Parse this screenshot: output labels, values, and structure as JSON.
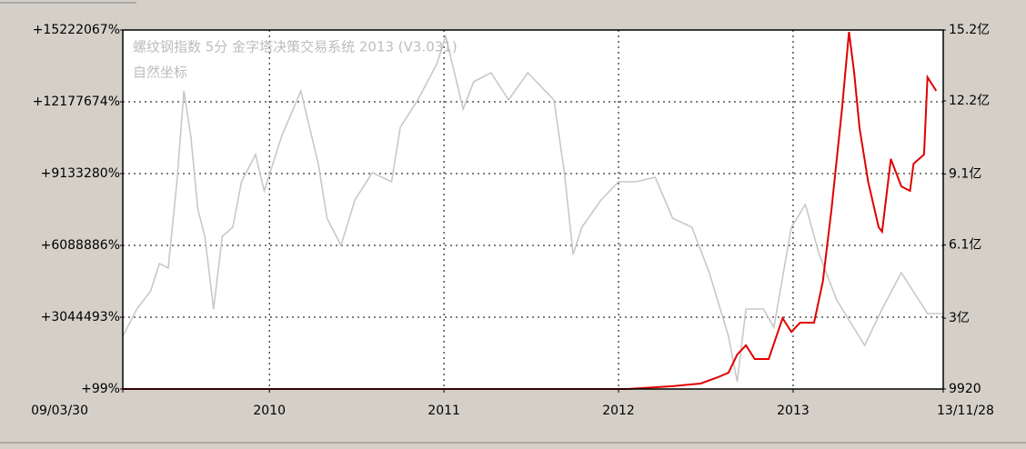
{
  "chart_data": {
    "type": "line",
    "title": "螺纹钢指数 5分 金字塔决策交易系统 2013 (V3.031)",
    "subtitle": "自然坐标",
    "xlim": [
      2009.16,
      2013.86
    ],
    "xticks": [
      {
        "value": 2009.16,
        "label": "09/03/30"
      },
      2010,
      2011,
      2012,
      2013,
      {
        "value": 2013.86,
        "label": "13/11/28"
      }
    ],
    "ylim": [
      99,
      15222067
    ],
    "yticks": [
      {
        "value": 99,
        "label": "+99%"
      },
      {
        "value": 3044493,
        "label": "+3044493%"
      },
      {
        "value": 6088886,
        "label": "+6088886%"
      },
      {
        "value": 9133280,
        "label": "+9133280%"
      },
      {
        "value": 12177674,
        "label": "+12177674%"
      },
      {
        "value": 15222067,
        "label": "+15222067%"
      }
    ],
    "y2lim": [
      9920,
      1520000000
    ],
    "y2ticks": [
      9920,
      {
        "value": 300000000,
        "label": "3亿"
      },
      {
        "value": 610000000,
        "label": "6.1亿"
      },
      {
        "value": 910000000,
        "label": "9.1亿"
      },
      {
        "value": 1220000000,
        "label": "12.2亿"
      },
      {
        "value": 1520000000,
        "label": "15.2亿"
      }
    ],
    "grid": true,
    "series": [
      {
        "color": "#c8c8c8",
        "axis": "y",
        "x": [
          2009.16,
          2009.24,
          2009.32,
          2009.37,
          2009.42,
          2009.47,
          2009.51,
          2009.55,
          2009.59,
          2009.63,
          2009.68,
          2009.73,
          2009.79,
          2009.84,
          2009.92,
          2009.97,
          2010.07,
          2010.18,
          2010.23,
          2010.28,
          2010.33,
          2010.41,
          2010.49,
          2010.59,
          2010.7,
          2010.75,
          2010.85,
          2010.96,
          2011.01,
          2011.11,
          2011.17,
          2011.27,
          2011.37,
          2011.48,
          2011.58,
          2011.63,
          2011.69,
          2011.74,
          2011.79,
          2011.9,
          2012.0,
          2012.1,
          2012.21,
          2012.31,
          2012.42,
          2012.52,
          2012.63,
          2012.68,
          2012.73,
          2012.83,
          2012.89,
          2012.99,
          2013.07,
          2013.15,
          2013.25,
          2013.41,
          2013.51,
          2013.62,
          2013.72,
          2013.77,
          2013.86
        ],
        "values": [
          2235000,
          3391000,
          4162000,
          5318000,
          5125000,
          8786000,
          12640000,
          10713000,
          7630000,
          6474000,
          3391000,
          6474000,
          6860000,
          8786000,
          9943000,
          8401000,
          10713000,
          12640000,
          11099000,
          9557000,
          7245000,
          6089000,
          8016000,
          9172000,
          8786000,
          11099000,
          12255000,
          13796000,
          14952000,
          11869000,
          13026000,
          13411000,
          12255000,
          13411000,
          12640000,
          12255000,
          9172000,
          5703000,
          6860000,
          8016000,
          8786000,
          8786000,
          8979000,
          7245000,
          6860000,
          4933000,
          2235000,
          308000,
          3391000,
          3391000,
          2621000,
          6860000,
          7823000,
          5703000,
          3777000,
          1850000,
          3391000,
          4933000,
          3777000,
          3199000,
          3199000
        ]
      },
      {
        "color": "#e00000",
        "axis": "y2",
        "x": [
          2009.16,
          2012.05,
          2012.31,
          2012.47,
          2012.57,
          2012.63,
          2012.68,
          2012.73,
          2012.78,
          2012.86,
          2012.94,
          2012.99,
          2013.04,
          2013.12,
          2013.17,
          2013.22,
          2013.28,
          2013.32,
          2013.35,
          2013.38,
          2013.43,
          2013.49,
          2013.51,
          2013.56,
          2013.62,
          2013.67,
          2013.69,
          2013.75,
          2013.77,
          2013.82
        ],
        "values": [
          9920,
          9920,
          12000000,
          23000000,
          50000000,
          69000000,
          146000000,
          185000000,
          127000000,
          127000000,
          300000000,
          242000000,
          281000000,
          281000000,
          454000000,
          762000000,
          1185000000,
          1512000000,
          1339000000,
          1108000000,
          877000000,
          685000000,
          666000000,
          974000000,
          858000000,
          839000000,
          954000000,
          993000000,
          1320000000,
          1262000000
        ]
      }
    ]
  }
}
